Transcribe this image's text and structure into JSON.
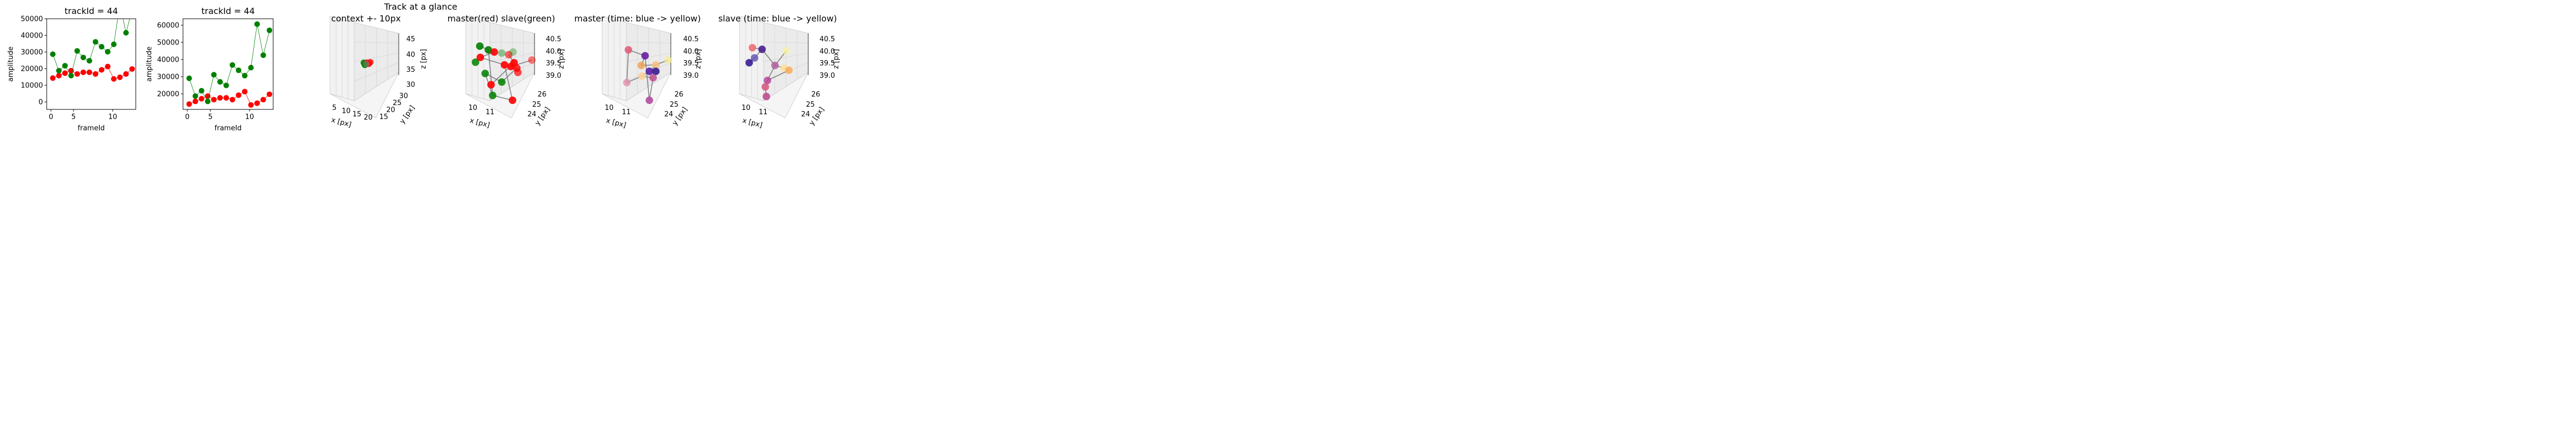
{
  "figure_title": "Track at a glance",
  "chart_data": [
    {
      "type": "line",
      "title": "trackId = 44",
      "xlabel": "frameId",
      "ylabel": "amplitude",
      "xlim": [
        -1,
        13.6
      ],
      "ylim": [
        -5000,
        50000
      ],
      "xticks": [
        "0",
        "5",
        "10"
      ],
      "yticks": [
        "0",
        "10000",
        "20000",
        "30000",
        "40000",
        "50000"
      ],
      "x": [
        0,
        1,
        2,
        3,
        4,
        5,
        6,
        7,
        8,
        9,
        10,
        11,
        12,
        13
      ],
      "series": [
        {
          "color": "#ff0000",
          "values": [
            14000,
            15500,
            17000,
            18500,
            16500,
            17500,
            17500,
            16500,
            19000,
            21000,
            13500,
            14500,
            16500,
            19500
          ]
        },
        {
          "color": "#008000",
          "values": [
            28500,
            18500,
            21500,
            15500,
            30500,
            26500,
            24500,
            36000,
            33000,
            30000,
            34500,
            59000,
            41500,
            55500
          ]
        }
      ]
    },
    {
      "type": "line",
      "title": "trackId = 44",
      "xlabel": "frameId",
      "ylabel": "amplitude",
      "xlim": [
        -1,
        13.6
      ],
      "ylim": [
        11000,
        62000
      ],
      "xticks": [
        "0",
        "5",
        "10"
      ],
      "yticks": [
        "20000",
        "30000",
        "40000",
        "50000",
        "60000"
      ],
      "x": [
        0,
        1,
        2,
        3,
        4,
        5,
        6,
        7,
        8,
        9,
        10,
        11,
        12,
        13
      ],
      "series": [
        {
          "color": "#ff0000",
          "values": [
            14000,
            15500,
            17000,
            18500,
            16500,
            17500,
            17500,
            16500,
            19000,
            21000,
            13500,
            14500,
            16500,
            19500
          ]
        },
        {
          "color": "#008000",
          "values": [
            28500,
            18500,
            21500,
            15500,
            30500,
            26500,
            24500,
            36000,
            33000,
            30000,
            34500,
            59000,
            41500,
            55500
          ]
        }
      ]
    },
    {
      "type": "scatter",
      "title": "context +- 10px",
      "xlabel": "x [px]",
      "ylabel": "y [px]",
      "zlabel": "z [px]",
      "xticks": [
        "5",
        "10",
        "15",
        "20"
      ],
      "yticks": [
        "15",
        "20",
        "25",
        "30"
      ],
      "zticks": [
        "30",
        "35",
        "40",
        "45"
      ]
    },
    {
      "type": "scatter",
      "title": "master(red) slave(green)",
      "xlabel": "x [px]",
      "ylabel": "y [px]",
      "zlabel": "z [px]",
      "xticks": [
        "10",
        "11"
      ],
      "yticks": [
        "24",
        "25",
        "26"
      ],
      "zticks": [
        "39.0",
        "39.5",
        "40.0",
        "40.5"
      ]
    },
    {
      "type": "scatter",
      "title": "master (time: blue -> yellow)",
      "xlabel": "x [px]",
      "ylabel": "y [px]",
      "zlabel": "z [px]",
      "xticks": [
        "10",
        "11"
      ],
      "yticks": [
        "24",
        "25",
        "26"
      ],
      "zticks": [
        "39.0",
        "39.5",
        "40.0",
        "40.5"
      ]
    },
    {
      "type": "scatter",
      "title": "slave (time: blue -> yellow)",
      "xlabel": "x [px]",
      "ylabel": "y [px]",
      "zlabel": "z [px]",
      "xticks": [
        "10",
        "11"
      ],
      "yticks": [
        "24",
        "25",
        "26"
      ],
      "zticks": [
        "39.0",
        "39.5",
        "40.0",
        "40.5"
      ]
    }
  ]
}
